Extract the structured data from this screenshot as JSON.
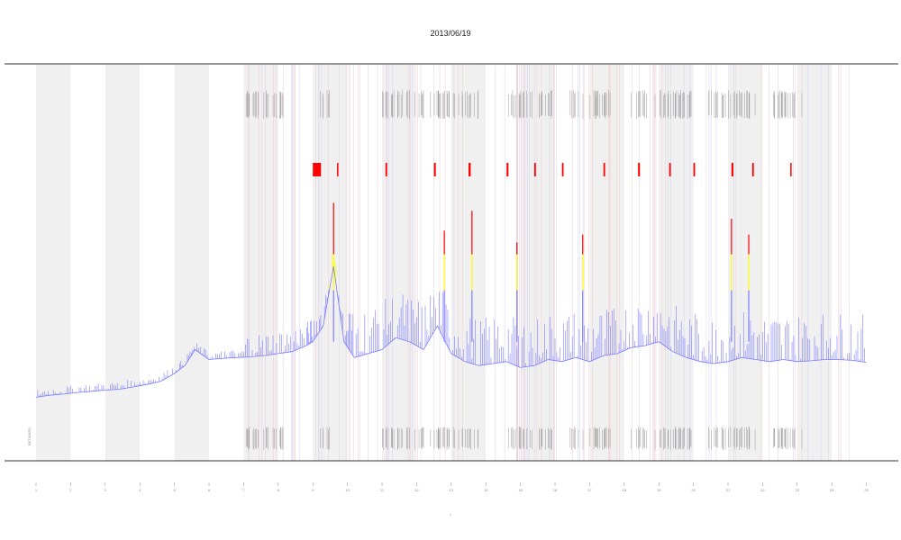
{
  "chart_data": {
    "type": "line",
    "title": "2013/06/19",
    "xlabel": "t",
    "ylabel": "",
    "side_label": "RETAINED",
    "grid": true,
    "legend": "none",
    "colors": {
      "line": "#7b7bff",
      "warning": "#ffff00",
      "critical": "#ff0000",
      "band": "#f0f0f0",
      "ticks": "#888888"
    },
    "x_ticks": [
      "1",
      "2",
      "3",
      "4",
      "5",
      "6",
      "7",
      "8",
      "9",
      "10",
      "11",
      "12",
      "13",
      "14",
      "15",
      "16",
      "17",
      "18",
      "19",
      "20",
      "21",
      "22",
      "23",
      "24",
      "25"
    ],
    "ylim": [
      0,
      100
    ],
    "thresholds": {
      "warning": 43,
      "critical": 52
    },
    "series": [
      {
        "x": [
          0,
          0.4,
          0.8,
          1.2,
          1.6,
          2,
          2.4,
          2.8,
          3.2,
          3.6,
          4,
          4.3,
          4.6,
          5,
          5.4,
          5.8,
          6.2,
          6.6,
          7,
          7.4,
          7.8,
          8,
          8.3,
          8.6,
          8.9,
          9.2,
          9.6,
          10,
          10.4,
          10.8,
          11.2,
          11.6,
          12,
          12.4,
          12.8,
          13.2,
          13.6,
          14,
          14.4,
          14.8,
          15.2,
          15.6,
          16,
          16.4,
          16.8,
          17.2,
          17.6,
          18,
          18.4,
          18.8,
          19.2,
          19.6,
          20,
          20.4,
          20.8,
          21.2,
          21.6,
          22,
          22.4,
          22.8,
          23.2,
          23.6,
          24
        ],
        "values": [
          16,
          16.5,
          16.8,
          17.2,
          17.5,
          17.8,
          18,
          18.6,
          19.2,
          20,
          22,
          24,
          28,
          25.5,
          25.8,
          26,
          26.2,
          26.5,
          27,
          27.5,
          29,
          30,
          34,
          49,
          30,
          26,
          27,
          28,
          31,
          30,
          28,
          34,
          27,
          25,
          24,
          24.5,
          25,
          23.5,
          24,
          25.5,
          25,
          26,
          25,
          26.5,
          27,
          28.5,
          29,
          30,
          27.5,
          26,
          25,
          24.5,
          25,
          26,
          25.5,
          25,
          25.5,
          25,
          25.2,
          25.5,
          25.5,
          25.3,
          24.8
        ]
      }
    ],
    "peaks": [
      {
        "x": 8.6,
        "value": 65
      },
      {
        "x": 11.8,
        "value": 58
      },
      {
        "x": 12.6,
        "value": 63
      },
      {
        "x": 13.9,
        "value": 55
      },
      {
        "x": 15.8,
        "value": 57
      },
      {
        "x": 20.1,
        "value": 61
      },
      {
        "x": 20.6,
        "value": 57
      }
    ],
    "events": [
      {
        "x": 8.0,
        "value": 1.5
      },
      {
        "x": 8.7,
        "value": 0.25
      },
      {
        "x": 10.1,
        "value": 0.3
      },
      {
        "x": 11.5,
        "value": 0.35
      },
      {
        "x": 12.5,
        "value": 0.4
      },
      {
        "x": 13.6,
        "value": 0.35
      },
      {
        "x": 14.4,
        "value": 0.3
      },
      {
        "x": 15.2,
        "value": 0.3
      },
      {
        "x": 16.4,
        "value": 0.3
      },
      {
        "x": 17.4,
        "value": 0.35
      },
      {
        "x": 18.3,
        "value": 0.3
      },
      {
        "x": 19.0,
        "value": 0.3
      },
      {
        "x": 20.1,
        "value": 0.35
      },
      {
        "x": 20.7,
        "value": 0.3
      },
      {
        "x": 21.8,
        "value": 0.25
      }
    ]
  }
}
